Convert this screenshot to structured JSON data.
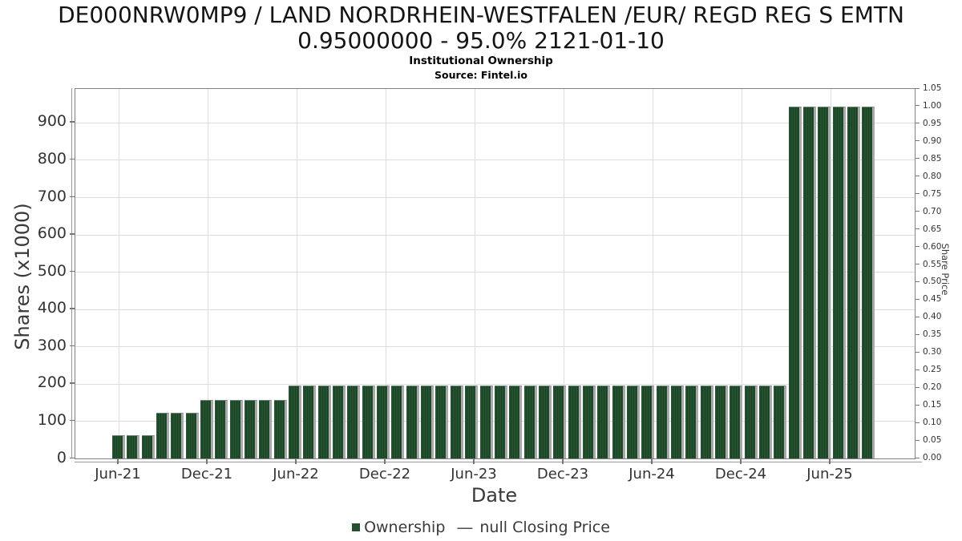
{
  "title": {
    "line1": "DE000NRW0MP9 / LAND NORDRHEIN-WESTFALEN /EUR/ REGD REG S EMTN",
    "line2": "0.95000000 - 95.0% 2121-01-10"
  },
  "subtitle": "Institutional Ownership",
  "source": "Source: Fintel.io",
  "axes": {
    "y_left": {
      "label": "Shares (x1000)",
      "ticks": [
        "0",
        "100",
        "200",
        "300",
        "400",
        "500",
        "600",
        "700",
        "800",
        "900"
      ]
    },
    "y_right": {
      "label": "Share Price",
      "ticks": [
        "0.00",
        "0.05",
        "0.10",
        "0.15",
        "0.20",
        "0.25",
        "0.30",
        "0.35",
        "0.40",
        "0.45",
        "0.50",
        "0.55",
        "0.60",
        "0.65",
        "0.70",
        "0.75",
        "0.80",
        "0.85",
        "0.90",
        "0.95",
        "1.00",
        "1.05"
      ]
    },
    "x": {
      "label": "Date",
      "ticks": [
        "Jun-21",
        "Dec-21",
        "Jun-22",
        "Dec-22",
        "Jun-23",
        "Dec-23",
        "Jun-24",
        "Dec-24",
        "Jun-25"
      ]
    }
  },
  "legend": {
    "ownership_label": "Ownership",
    "price_dash": "—",
    "price_label": "null Closing Price"
  },
  "colors": {
    "bar_green": "#24512f",
    "bar_stripe": "#1a4123",
    "bar_shadow": "#a9a9a9",
    "grid": "#dcdcdc",
    "spine": "#828282",
    "tick": "#777777",
    "tick_text": "#333333",
    "label_text": "#3a3a3a",
    "title_text": "#141414"
  },
  "chart_data": {
    "type": "bar",
    "title": "Institutional Ownership",
    "xlabel": "Date",
    "ylabel": "Shares (x1000)",
    "y2label": "Share Price",
    "ylim": [
      0,
      990
    ],
    "y2lim": [
      0,
      1.05
    ],
    "grid": true,
    "legend_position": "bottom-center",
    "categories": [
      "Jun-21",
      "Jul-21",
      "Aug-21",
      "Sep-21",
      "Oct-21",
      "Nov-21",
      "Dec-21",
      "Jan-22",
      "Feb-22",
      "Mar-22",
      "Apr-22",
      "May-22",
      "Jun-22",
      "Jul-22",
      "Aug-22",
      "Sep-22",
      "Oct-22",
      "Nov-22",
      "Dec-22",
      "Jan-23",
      "Feb-23",
      "Mar-23",
      "Apr-23",
      "May-23",
      "Jun-23",
      "Jul-23",
      "Aug-23",
      "Sep-23",
      "Oct-23",
      "Nov-23",
      "Dec-23",
      "Jan-24",
      "Feb-24",
      "Mar-24",
      "Apr-24",
      "May-24",
      "Jun-24",
      "Jul-24",
      "Aug-24",
      "Sep-24",
      "Oct-24",
      "Nov-24",
      "Dec-24",
      "Jan-25",
      "Feb-25",
      "Mar-25",
      "Apr-25",
      "May-25",
      "Jun-25",
      "Jul-25",
      "Aug-25",
      "Sep-25"
    ],
    "series": [
      {
        "name": "Ownership",
        "axis": "left",
        "values": [
          60,
          60,
          60,
          120,
          120,
          120,
          155,
          155,
          155,
          155,
          155,
          155,
          193,
          193,
          193,
          193,
          193,
          193,
          193,
          193,
          193,
          193,
          193,
          193,
          193,
          193,
          193,
          193,
          193,
          193,
          193,
          193,
          193,
          193,
          193,
          193,
          193,
          193,
          193,
          193,
          193,
          193,
          193,
          193,
          193,
          193,
          940,
          940,
          940,
          940,
          940,
          940
        ]
      },
      {
        "name": "null Closing Price",
        "axis": "right",
        "values": []
      }
    ]
  }
}
